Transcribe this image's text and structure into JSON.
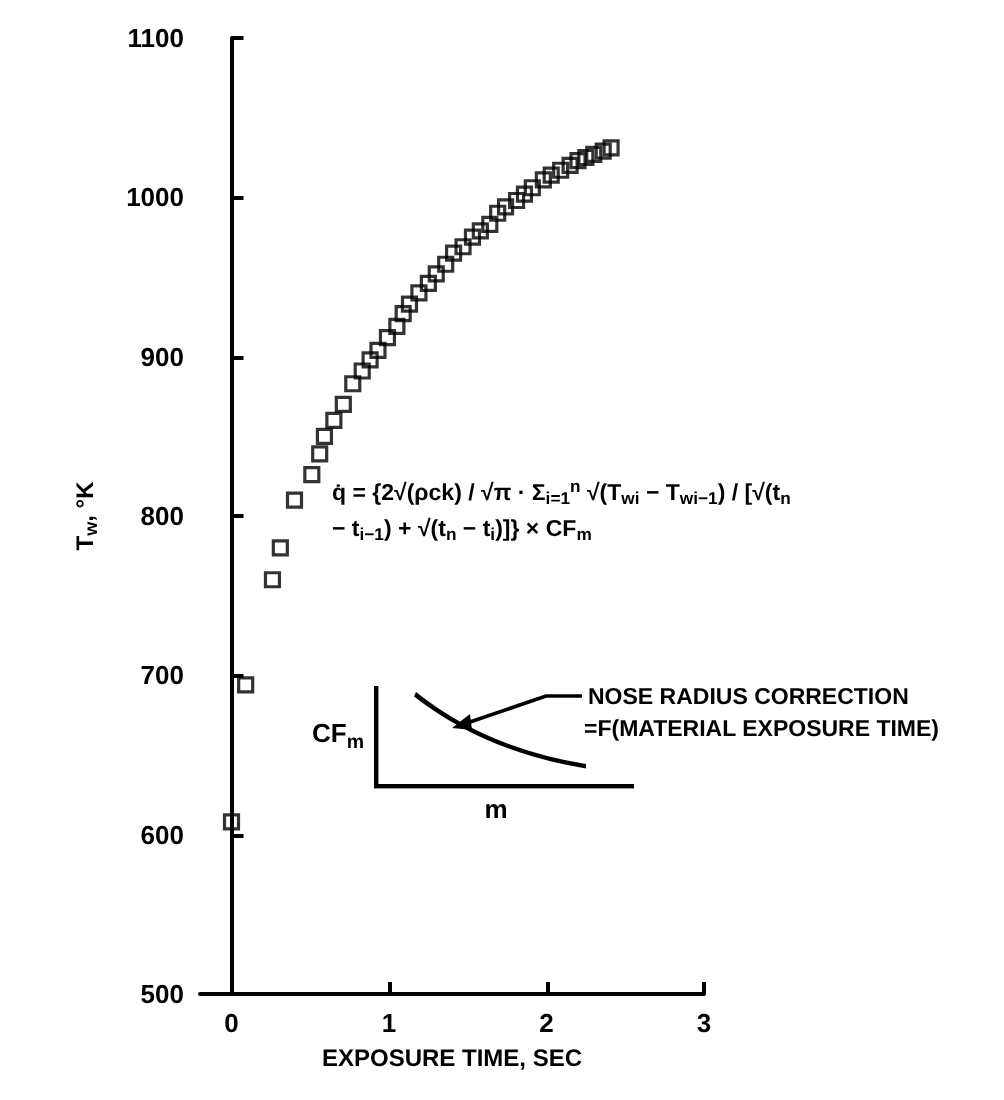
{
  "chart_data": {
    "type": "scatter",
    "xlabel": "EXPOSURE TIME, SEC",
    "ylabel": "T$_{w}$, °K",
    "marker": "square",
    "grid": false,
    "xlim": [
      -0.2,
      3
    ],
    "xticks": [
      0,
      1,
      2,
      3
    ],
    "ylim": [
      500,
      1100
    ],
    "yticks": [
      500,
      600,
      700,
      800,
      900,
      1000,
      1100
    ],
    "series": [
      {
        "color": "#000000",
        "x": [
          0,
          0.09,
          0.26,
          0.31,
          0.4,
          0.51,
          0.56,
          0.59,
          0.65,
          0.71,
          0.77,
          0.83,
          0.88,
          0.93,
          0.99,
          1.05,
          1.09,
          1.13,
          1.19,
          1.25,
          1.3,
          1.36,
          1.41,
          1.47,
          1.53,
          1.58,
          1.64,
          1.69,
          1.74,
          1.81,
          1.86,
          1.91,
          1.98,
          2.03,
          2.09,
          2.15,
          2.2,
          2.25,
          2.3,
          2.36,
          2.41
        ],
        "values": [
          608,
          694,
          760,
          780,
          810,
          826,
          839,
          850,
          860,
          870,
          883,
          891,
          898,
          904,
          912,
          919,
          927,
          933,
          940,
          946,
          952,
          958,
          965,
          969,
          975,
          979,
          983,
          990,
          994,
          998,
          1002,
          1006,
          1011,
          1014,
          1017,
          1020,
          1023,
          1025,
          1027,
          1029,
          1031
        ]
      }
    ],
    "annotations": [
      "q̇ = {2√(ρck) / √π · Σ$_{i=1}$$^{n}$ √(T$_{wi}$ − T$_{wi−1}$) / [√(t$_{n}$ − t$_{i−1}$) + √(t$_{n}$ − t$_{i}$)]} × CF$_{m}$",
      "NOSE RADIUS CORRECTION",
      "=F(MATERIAL EXPOSURE TIME)",
      "CF$_{m}$",
      "m"
    ]
  }
}
